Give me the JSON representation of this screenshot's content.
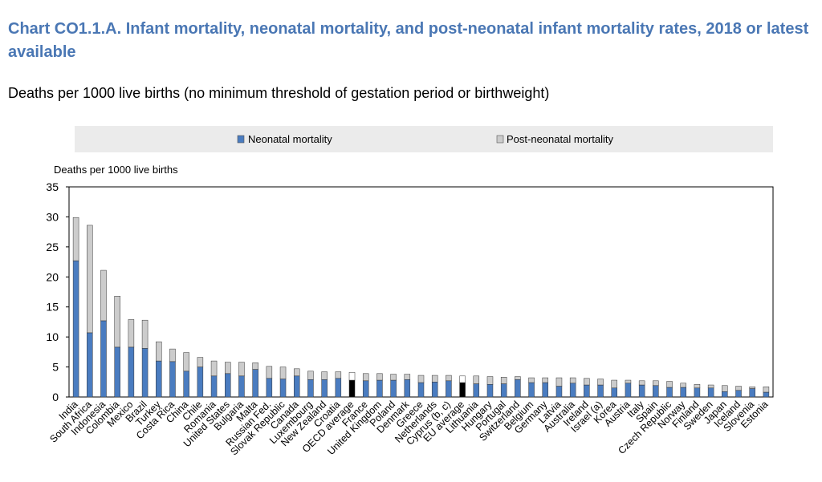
{
  "title": "Chart CO1.1.A. Infant mortality, neonatal mortality, and post-neonatal infant mortality rates, 2018 or latest available",
  "subtitle": "Deaths per 1000 live births (no minimum threshold of gestation period or birthweight)",
  "colors": {
    "neonatal": "#4a7cc0",
    "post_neonatal": "#cccccc",
    "average_total": "#000000",
    "legend_bg": "#ebebeb"
  },
  "chart_data": {
    "type": "bar",
    "stacked": true,
    "ylabel": "Deaths per 1000 live births",
    "ylim": [
      0,
      35
    ],
    "yticks": [
      0,
      5,
      10,
      15,
      20,
      25,
      30,
      35
    ],
    "grid": false,
    "legend_position": "top",
    "categories": [
      "India",
      "South Africa",
      "Indonesia",
      "Colombia",
      "Mexico",
      "Brazil",
      "Turkey",
      "Costa Rica",
      "China",
      "Chile",
      "Romania",
      "United States",
      "Bulgaria",
      "Malta",
      "Russian Fed.",
      "Slovak Republic",
      "Canada",
      "Luxembourg",
      "New Zealand",
      "Croatia",
      "OECD average",
      "France",
      "United Kingdom",
      "Poland",
      "Denmark",
      "Greece",
      "Netherlands",
      "Cyprus (b, c)",
      "EU average",
      "Lithuania",
      "Hungary",
      "Portugal",
      "Switzerland",
      "Belgium",
      "Germany",
      "Latvia",
      "Australia",
      "Ireland",
      "Israel (a)",
      "Korea",
      "Austria",
      "Italy",
      "Spain",
      "Czech Republic",
      "Norway",
      "Finland",
      "Sweden",
      "Japan",
      "Iceland",
      "Slovenia",
      "Estonia"
    ],
    "highlight": [
      "OECD average",
      "EU average"
    ],
    "series": [
      {
        "name": "Neonatal mortality",
        "values": [
          22.7,
          10.7,
          12.7,
          8.3,
          8.3,
          8.1,
          6.0,
          5.9,
          4.3,
          5.0,
          3.5,
          3.9,
          3.5,
          4.6,
          3.1,
          3.0,
          3.5,
          2.9,
          2.9,
          3.1,
          2.8,
          2.7,
          2.8,
          2.8,
          2.9,
          2.4,
          2.5,
          2.7,
          2.4,
          2.2,
          2.1,
          2.2,
          2.9,
          2.4,
          2.4,
          1.8,
          2.3,
          2.0,
          2.0,
          1.5,
          2.3,
          2.0,
          1.9,
          1.6,
          1.6,
          1.5,
          1.5,
          0.9,
          1.1,
          1.4,
          0.8
        ]
      },
      {
        "name": "Post-neonatal mortality",
        "values": [
          7.2,
          17.9,
          8.4,
          8.5,
          4.6,
          4.7,
          3.2,
          2.1,
          3.1,
          1.6,
          2.5,
          1.9,
          2.3,
          1.1,
          2.0,
          2.0,
          1.2,
          1.4,
          1.3,
          1.1,
          1.3,
          1.2,
          1.1,
          1.0,
          0.9,
          1.2,
          1.1,
          0.9,
          1.1,
          1.3,
          1.3,
          1.1,
          0.5,
          0.8,
          0.8,
          1.4,
          0.9,
          1.1,
          1.0,
          1.3,
          0.5,
          0.7,
          0.8,
          1.0,
          0.7,
          0.6,
          0.5,
          1.0,
          0.7,
          0.3,
          0.9
        ]
      }
    ]
  }
}
